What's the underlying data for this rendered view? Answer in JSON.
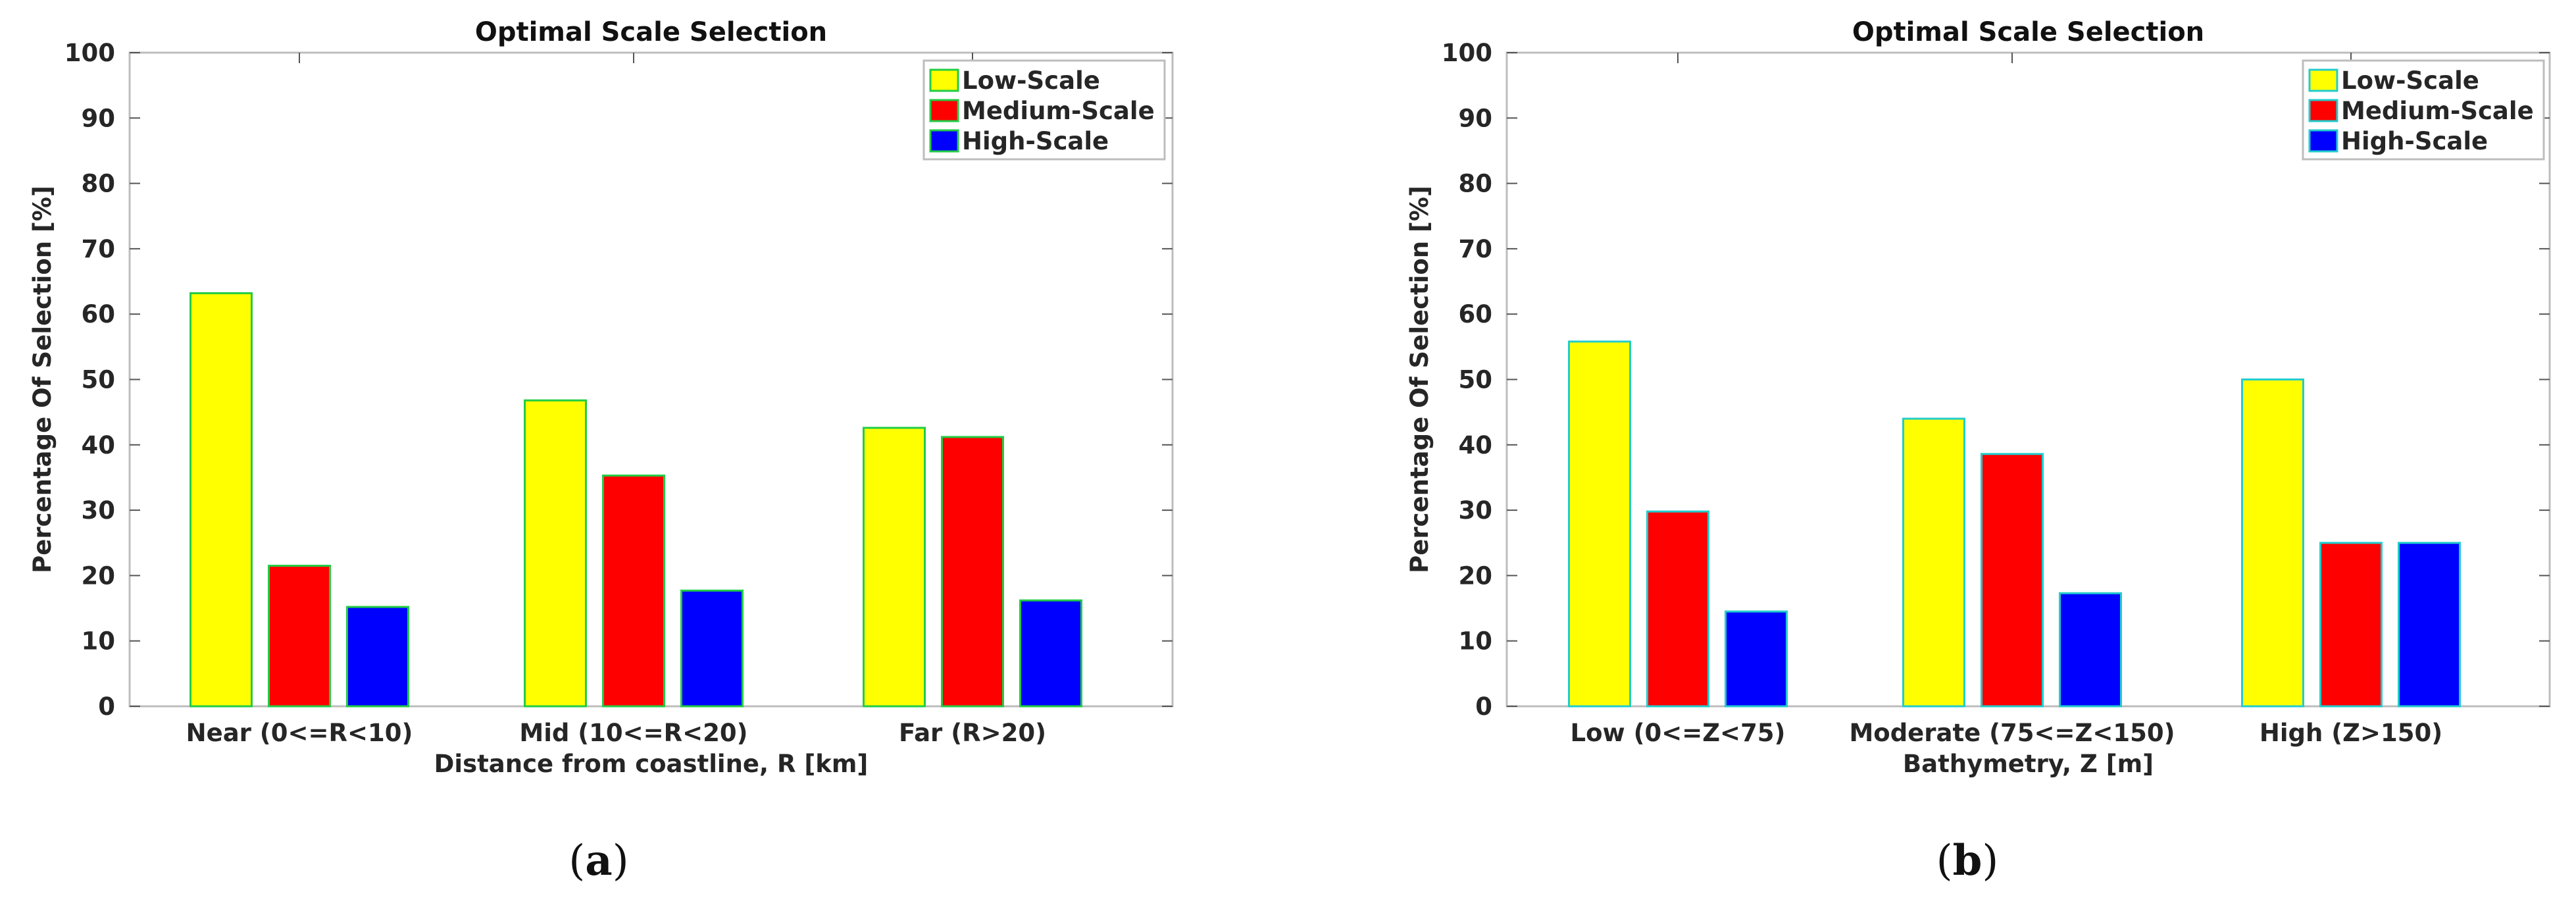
{
  "colors": {
    "low": "#ffff00",
    "medium": "#ff0000",
    "high": "#0000ff",
    "bar_edge_a": "#22cc44",
    "bar_edge_b": "#22cccc",
    "axis": "#bdbdbd",
    "text": "#262626"
  },
  "chart_data": [
    {
      "type": "bar",
      "title": "Optimal Scale Selection",
      "xlabel": "Distance from coastline, R [km]",
      "ylabel": "Percentage Of Selection [%]",
      "ylim": [
        0,
        100
      ],
      "yticks": [
        0,
        10,
        20,
        30,
        40,
        50,
        60,
        70,
        80,
        90,
        100
      ],
      "grid": false,
      "legend_position": "top-right",
      "categories": [
        "Near (0<=R<10)",
        "Mid (10<=R<20)",
        "Far (R>20)"
      ],
      "series": [
        {
          "name": "Low-Scale",
          "values": [
            63.2,
            46.8,
            42.6
          ]
        },
        {
          "name": "Medium-Scale",
          "values": [
            21.5,
            35.3,
            41.2
          ]
        },
        {
          "name": "High-Scale",
          "values": [
            15.2,
            17.7,
            16.2
          ]
        }
      ],
      "caption_label": "a"
    },
    {
      "type": "bar",
      "title": "Optimal Scale Selection",
      "xlabel": "Bathymetry, Z [m]",
      "ylabel": "Percentage Of Selection [%]",
      "ylim": [
        0,
        100
      ],
      "yticks": [
        0,
        10,
        20,
        30,
        40,
        50,
        60,
        70,
        80,
        90,
        100
      ],
      "grid": false,
      "legend_position": "top-right",
      "categories": [
        "Low (0<=Z<75)",
        "Moderate (75<=Z<150)",
        "High (Z>150)"
      ],
      "series": [
        {
          "name": "Low-Scale",
          "values": [
            55.8,
            44.0,
            50.0
          ]
        },
        {
          "name": "Medium-Scale",
          "values": [
            29.8,
            38.6,
            25.0
          ]
        },
        {
          "name": "High-Scale",
          "values": [
            14.5,
            17.3,
            25.0
          ]
        }
      ],
      "caption_label": "b"
    }
  ]
}
